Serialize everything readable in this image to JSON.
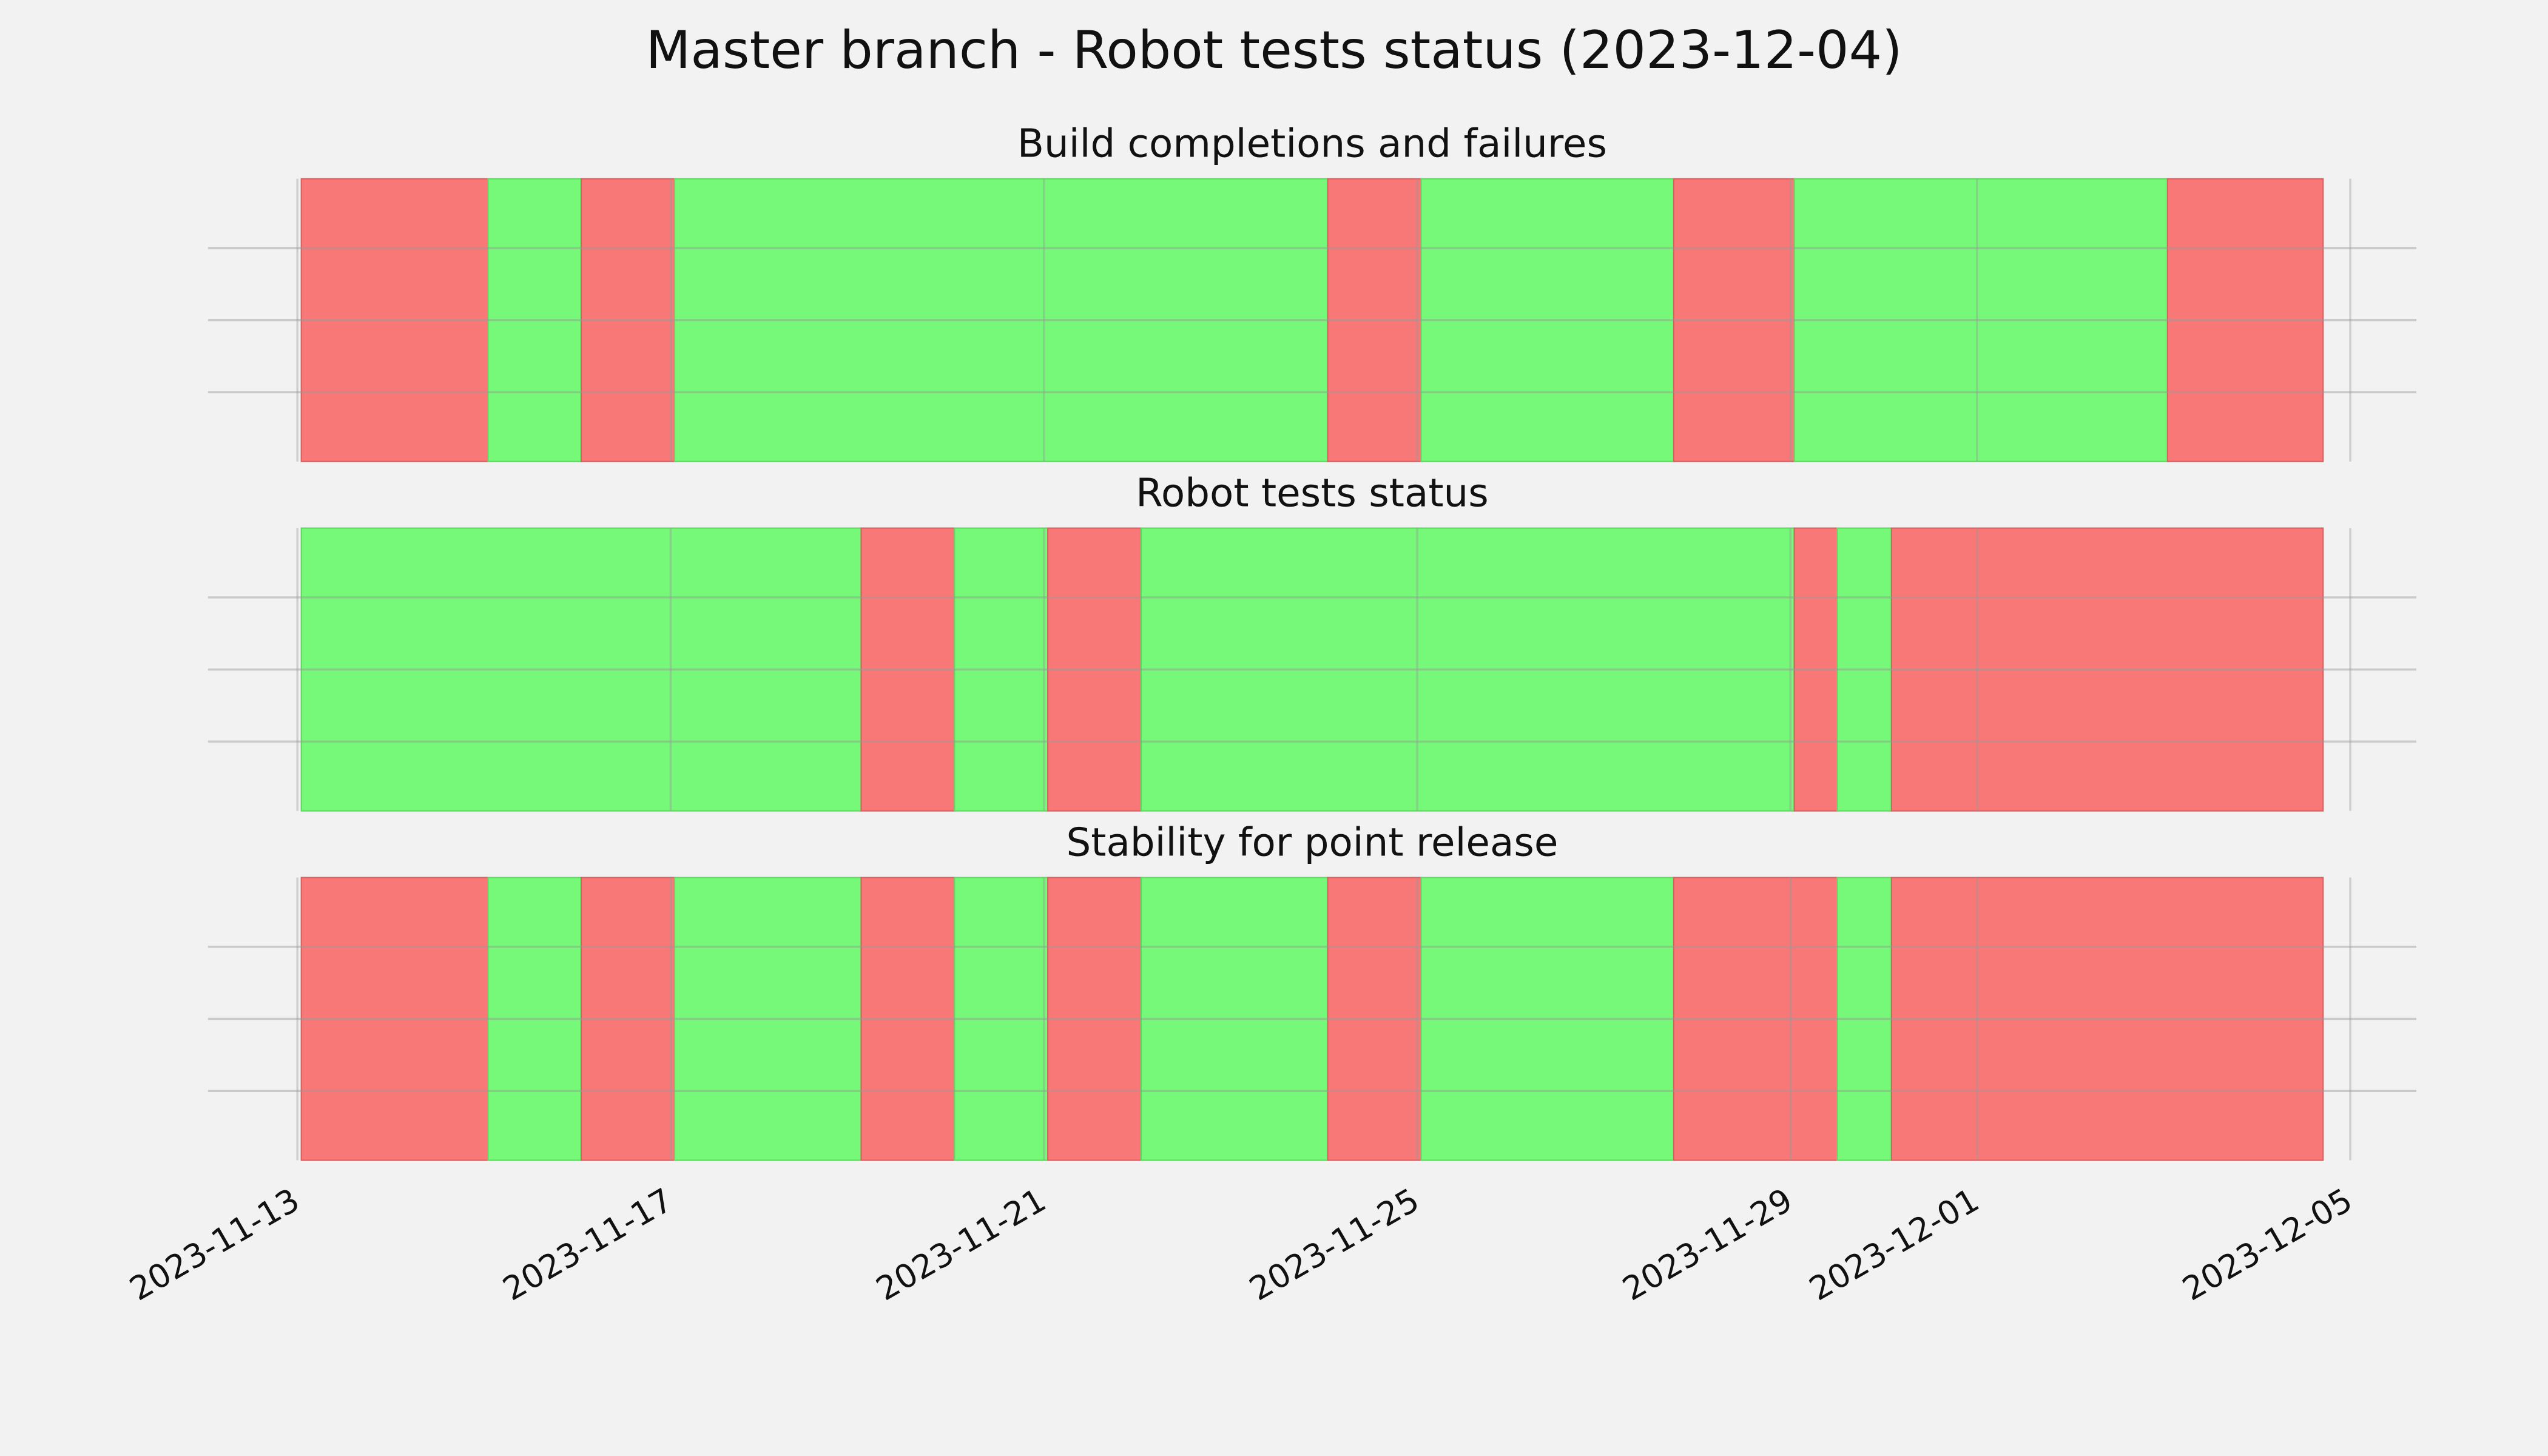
{
  "title": "Master branch - Robot tests status (2023-12-04)",
  "chart_data": [
    {
      "type": "timeline",
      "title": "Build completions and failures",
      "x": [
        "2023-11-13T01:00",
        "2023-11-15T01:00",
        "2023-11-16T01:00",
        "2023-11-17T01:00",
        "2023-11-24T01:00",
        "2023-11-25T01:00",
        "2023-11-27T18:00",
        "2023-11-29T01:00",
        "2023-12-03T01:00",
        "2023-12-04T17:00"
      ],
      "colors": [
        "#f87878",
        "#76f878",
        "#f87878",
        "#76f878",
        "#f87878",
        "#76f878",
        "#f87878",
        "#76f878",
        "#f87878"
      ],
      "xlim": [
        "2023-11-12T01:00",
        "2023-12-05T17:00"
      ],
      "xticks": [
        "2023-11-13",
        "2023-11-17",
        "2023-11-21",
        "2023-11-25",
        "2023-11-29",
        "2023-12-01",
        "2023-12-05"
      ],
      "show_xtick_labels": false,
      "grid": true
    },
    {
      "type": "timeline",
      "title": "Robot tests status",
      "x": [
        "2023-11-13T01:00",
        "2023-11-19T01:00",
        "2023-11-20T01:00",
        "2023-11-21T01:00",
        "2023-11-22T01:00",
        "2023-11-29T01:00",
        "2023-11-29T12:00",
        "2023-11-30T02:00",
        "2023-12-04T17:00"
      ],
      "colors": [
        "#76f878",
        "#f87878",
        "#76f878",
        "#f87878",
        "#76f878",
        "#f87878",
        "#76f878",
        "#f87878"
      ],
      "xlim": [
        "2023-11-12T01:00",
        "2023-12-05T17:00"
      ],
      "xticks": [
        "2023-11-13",
        "2023-11-17",
        "2023-11-21",
        "2023-11-25",
        "2023-11-29",
        "2023-12-01",
        "2023-12-05"
      ],
      "show_xtick_labels": false,
      "grid": true
    },
    {
      "type": "timeline",
      "title": "Stability for point release",
      "x": [
        "2023-11-13T01:00",
        "2023-11-15T01:00",
        "2023-11-16T01:00",
        "2023-11-17T01:00",
        "2023-11-19T01:00",
        "2023-11-20T01:00",
        "2023-11-21T01:00",
        "2023-11-22T01:00",
        "2023-11-24T01:00",
        "2023-11-25T01:00",
        "2023-11-27T18:00",
        "2023-11-29T12:00",
        "2023-11-30T02:00",
        "2023-12-04T17:00"
      ],
      "colors": [
        "#f87878",
        "#76f878",
        "#f87878",
        "#76f878",
        "#f87878",
        "#76f878",
        "#f87878",
        "#76f878",
        "#f87878",
        "#76f878",
        "#f87878",
        "#76f878",
        "#f87878"
      ],
      "xlim": [
        "2023-11-12T01:00",
        "2023-12-05T17:00"
      ],
      "xticks": [
        "2023-11-13",
        "2023-11-17",
        "2023-11-21",
        "2023-11-25",
        "2023-11-29",
        "2023-12-01",
        "2023-12-05"
      ],
      "show_xtick_labels": true,
      "grid": true
    }
  ]
}
